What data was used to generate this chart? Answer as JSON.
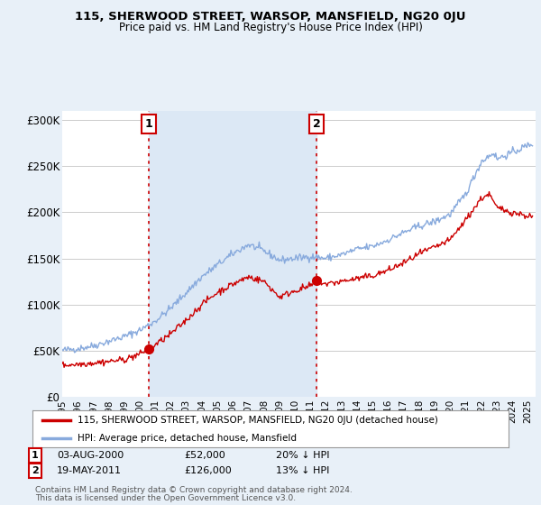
{
  "title": "115, SHERWOOD STREET, WARSOP, MANSFIELD, NG20 0JU",
  "subtitle": "Price paid vs. HM Land Registry's House Price Index (HPI)",
  "ylabel_ticks": [
    "£0",
    "£50K",
    "£100K",
    "£150K",
    "£200K",
    "£250K",
    "£300K"
  ],
  "ytick_values": [
    0,
    50000,
    100000,
    150000,
    200000,
    250000,
    300000
  ],
  "ylim": [
    0,
    310000
  ],
  "xlim_start": 1995.0,
  "xlim_end": 2025.5,
  "sale1_x": 2000.58,
  "sale1_y": 52000,
  "sale1_label": "1",
  "sale1_date": "03-AUG-2000",
  "sale1_price": "£52,000",
  "sale1_hpi": "20% ↓ HPI",
  "sale2_x": 2011.38,
  "sale2_y": 126000,
  "sale2_label": "2",
  "sale2_date": "19-MAY-2011",
  "sale2_price": "£126,000",
  "sale2_hpi": "13% ↓ HPI",
  "legend_address": "115, SHERWOOD STREET, WARSOP, MANSFIELD, NG20 0JU (detached house)",
  "legend_hpi": "HPI: Average price, detached house, Mansfield",
  "footer1": "Contains HM Land Registry data © Crown copyright and database right 2024.",
  "footer2": "This data is licensed under the Open Government Licence v3.0.",
  "line_color_address": "#cc0000",
  "line_color_hpi": "#88aadd",
  "shade_color": "#dce8f5",
  "bg_color": "#e8f0f8",
  "plot_bg": "#ffffff",
  "grid_color": "#cccccc",
  "annotation_vline_color": "#cc0000"
}
